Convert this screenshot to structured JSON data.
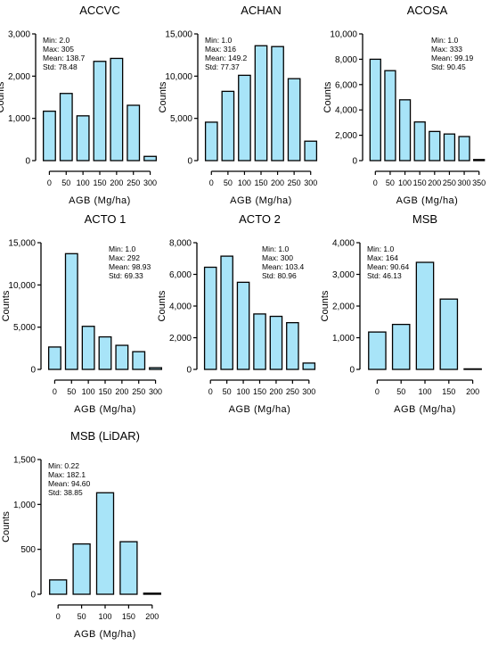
{
  "chart_data": [
    {
      "type": "bar",
      "title": "ACCVC",
      "xlabel": "AGB (Mg/ha)",
      "ylabel": "Counts",
      "categories": [
        "0",
        "50",
        "100",
        "150",
        "200",
        "250",
        "300"
      ],
      "values": [
        1170,
        1590,
        1060,
        2350,
        2420,
        1310,
        100
      ],
      "ylim": [
        0,
        3000
      ],
      "yticks": [
        0,
        1000,
        2000,
        3000
      ],
      "ytick_labels": [
        "0",
        "1,000",
        "2,000",
        "3,000"
      ],
      "stats": [
        "Min: 2.0",
        "Max: 305",
        "Mean: 138.7",
        "Std: 78.48"
      ],
      "stats_position": "top-left",
      "bar_color": "#a8e4f8",
      "grid": false
    },
    {
      "type": "bar",
      "title": "ACHAN",
      "xlabel": "AGB (Mg/ha)",
      "ylabel": "Counts",
      "categories": [
        "0",
        "50",
        "100",
        "150",
        "200",
        "250",
        "300"
      ],
      "values": [
        4550,
        8200,
        10100,
        13600,
        13500,
        9700,
        2300
      ],
      "ylim": [
        0,
        15000
      ],
      "yticks": [
        0,
        5000,
        10000,
        15000
      ],
      "ytick_labels": [
        "0",
        "5,000",
        "10,000",
        "15,000"
      ],
      "stats": [
        "Min: 1.0",
        "Max: 316",
        "Mean: 149.2",
        "Std: 77.37"
      ],
      "stats_position": "top-left",
      "bar_color": "#a8e4f8",
      "grid": false
    },
    {
      "type": "bar",
      "title": "ACOSA",
      "xlabel": "AGB (Mg/ha)",
      "ylabel": "Counts",
      "categories": [
        "0",
        "50",
        "100",
        "150",
        "200",
        "250",
        "300",
        "350"
      ],
      "values": [
        8000,
        7100,
        4800,
        3050,
        2300,
        2100,
        1900,
        60
      ],
      "ylim": [
        0,
        10000
      ],
      "yticks": [
        0,
        2000,
        4000,
        6000,
        8000,
        10000
      ],
      "ytick_labels": [
        "0",
        "2,000",
        "4,000",
        "6,000",
        "8,000",
        "10,000"
      ],
      "stats": [
        "Min: 1.0",
        "Max: 333",
        "Mean: 99.19",
        "Std: 90.45"
      ],
      "stats_position": "top-right",
      "bar_color": "#a8e4f8",
      "grid": false
    },
    {
      "type": "bar",
      "title": "ACTO 1",
      "xlabel": "AGB (Mg/ha)",
      "ylabel": "Counts",
      "categories": [
        "0",
        "50",
        "100",
        "150",
        "200",
        "250",
        "300"
      ],
      "values": [
        2650,
        13700,
        5100,
        3850,
        2850,
        2100,
        200
      ],
      "ylim": [
        0,
        15000
      ],
      "yticks": [
        0,
        5000,
        10000,
        15000
      ],
      "ytick_labels": [
        "0",
        "5,000",
        "10,000",
        "15,000"
      ],
      "stats": [
        "Min: 1.0",
        "Max: 292",
        "Mean: 98.93",
        "Std: 69.33"
      ],
      "stats_position": "top-right",
      "bar_color": "#a8e4f8",
      "grid": false
    },
    {
      "type": "bar",
      "title": "ACTO 2",
      "xlabel": "AGB (Mg/ha)",
      "ylabel": "Counts",
      "categories": [
        "0",
        "50",
        "100",
        "150",
        "200",
        "250",
        "300"
      ],
      "values": [
        6450,
        7150,
        5500,
        3500,
        3350,
        2950,
        400
      ],
      "ylim": [
        0,
        8000
      ],
      "yticks": [
        0,
        2000,
        4000,
        6000,
        8000
      ],
      "ytick_labels": [
        "0",
        "2,000",
        "4,000",
        "6,000",
        "8,000"
      ],
      "stats": [
        "Min: 1.0",
        "Max: 300",
        "Mean: 103.4",
        "Std: 80.96"
      ],
      "stats_position": "top-right",
      "bar_color": "#a8e4f8",
      "grid": false
    },
    {
      "type": "bar",
      "title": "MSB",
      "xlabel": "AGB (Mg/ha)",
      "ylabel": "Counts",
      "categories": [
        "0",
        "50",
        "100",
        "150",
        "200"
      ],
      "values": [
        1180,
        1420,
        3380,
        2220,
        0
      ],
      "ylim": [
        0,
        4000
      ],
      "yticks": [
        0,
        1000,
        2000,
        3000,
        4000
      ],
      "ytick_labels": [
        "0",
        "1,000",
        "2,000",
        "3,000",
        "4,000"
      ],
      "stats": [
        "Min: 1.0",
        "Max: 164",
        "Mean: 90.64",
        "Std: 46.13"
      ],
      "stats_position": "top-left",
      "bar_color": "#a8e4f8",
      "grid": false
    },
    {
      "type": "bar",
      "title": "MSB (LiDAR)",
      "xlabel": "AGB (Mg/ha)",
      "ylabel": "Counts",
      "categories": [
        "0",
        "50",
        "100",
        "150",
        "200"
      ],
      "values": [
        160,
        560,
        1130,
        585,
        5
      ],
      "ylim": [
        0,
        1500
      ],
      "yticks": [
        0,
        500,
        1000,
        1500
      ],
      "ytick_labels": [
        "0",
        "500",
        "1,000",
        "1,500"
      ],
      "stats": [
        "Min: 0.22",
        "Max: 182.1",
        "Mean: 94.60",
        "Std: 38.85"
      ],
      "stats_position": "top-left",
      "bar_color": "#a8e4f8",
      "grid": false
    }
  ]
}
